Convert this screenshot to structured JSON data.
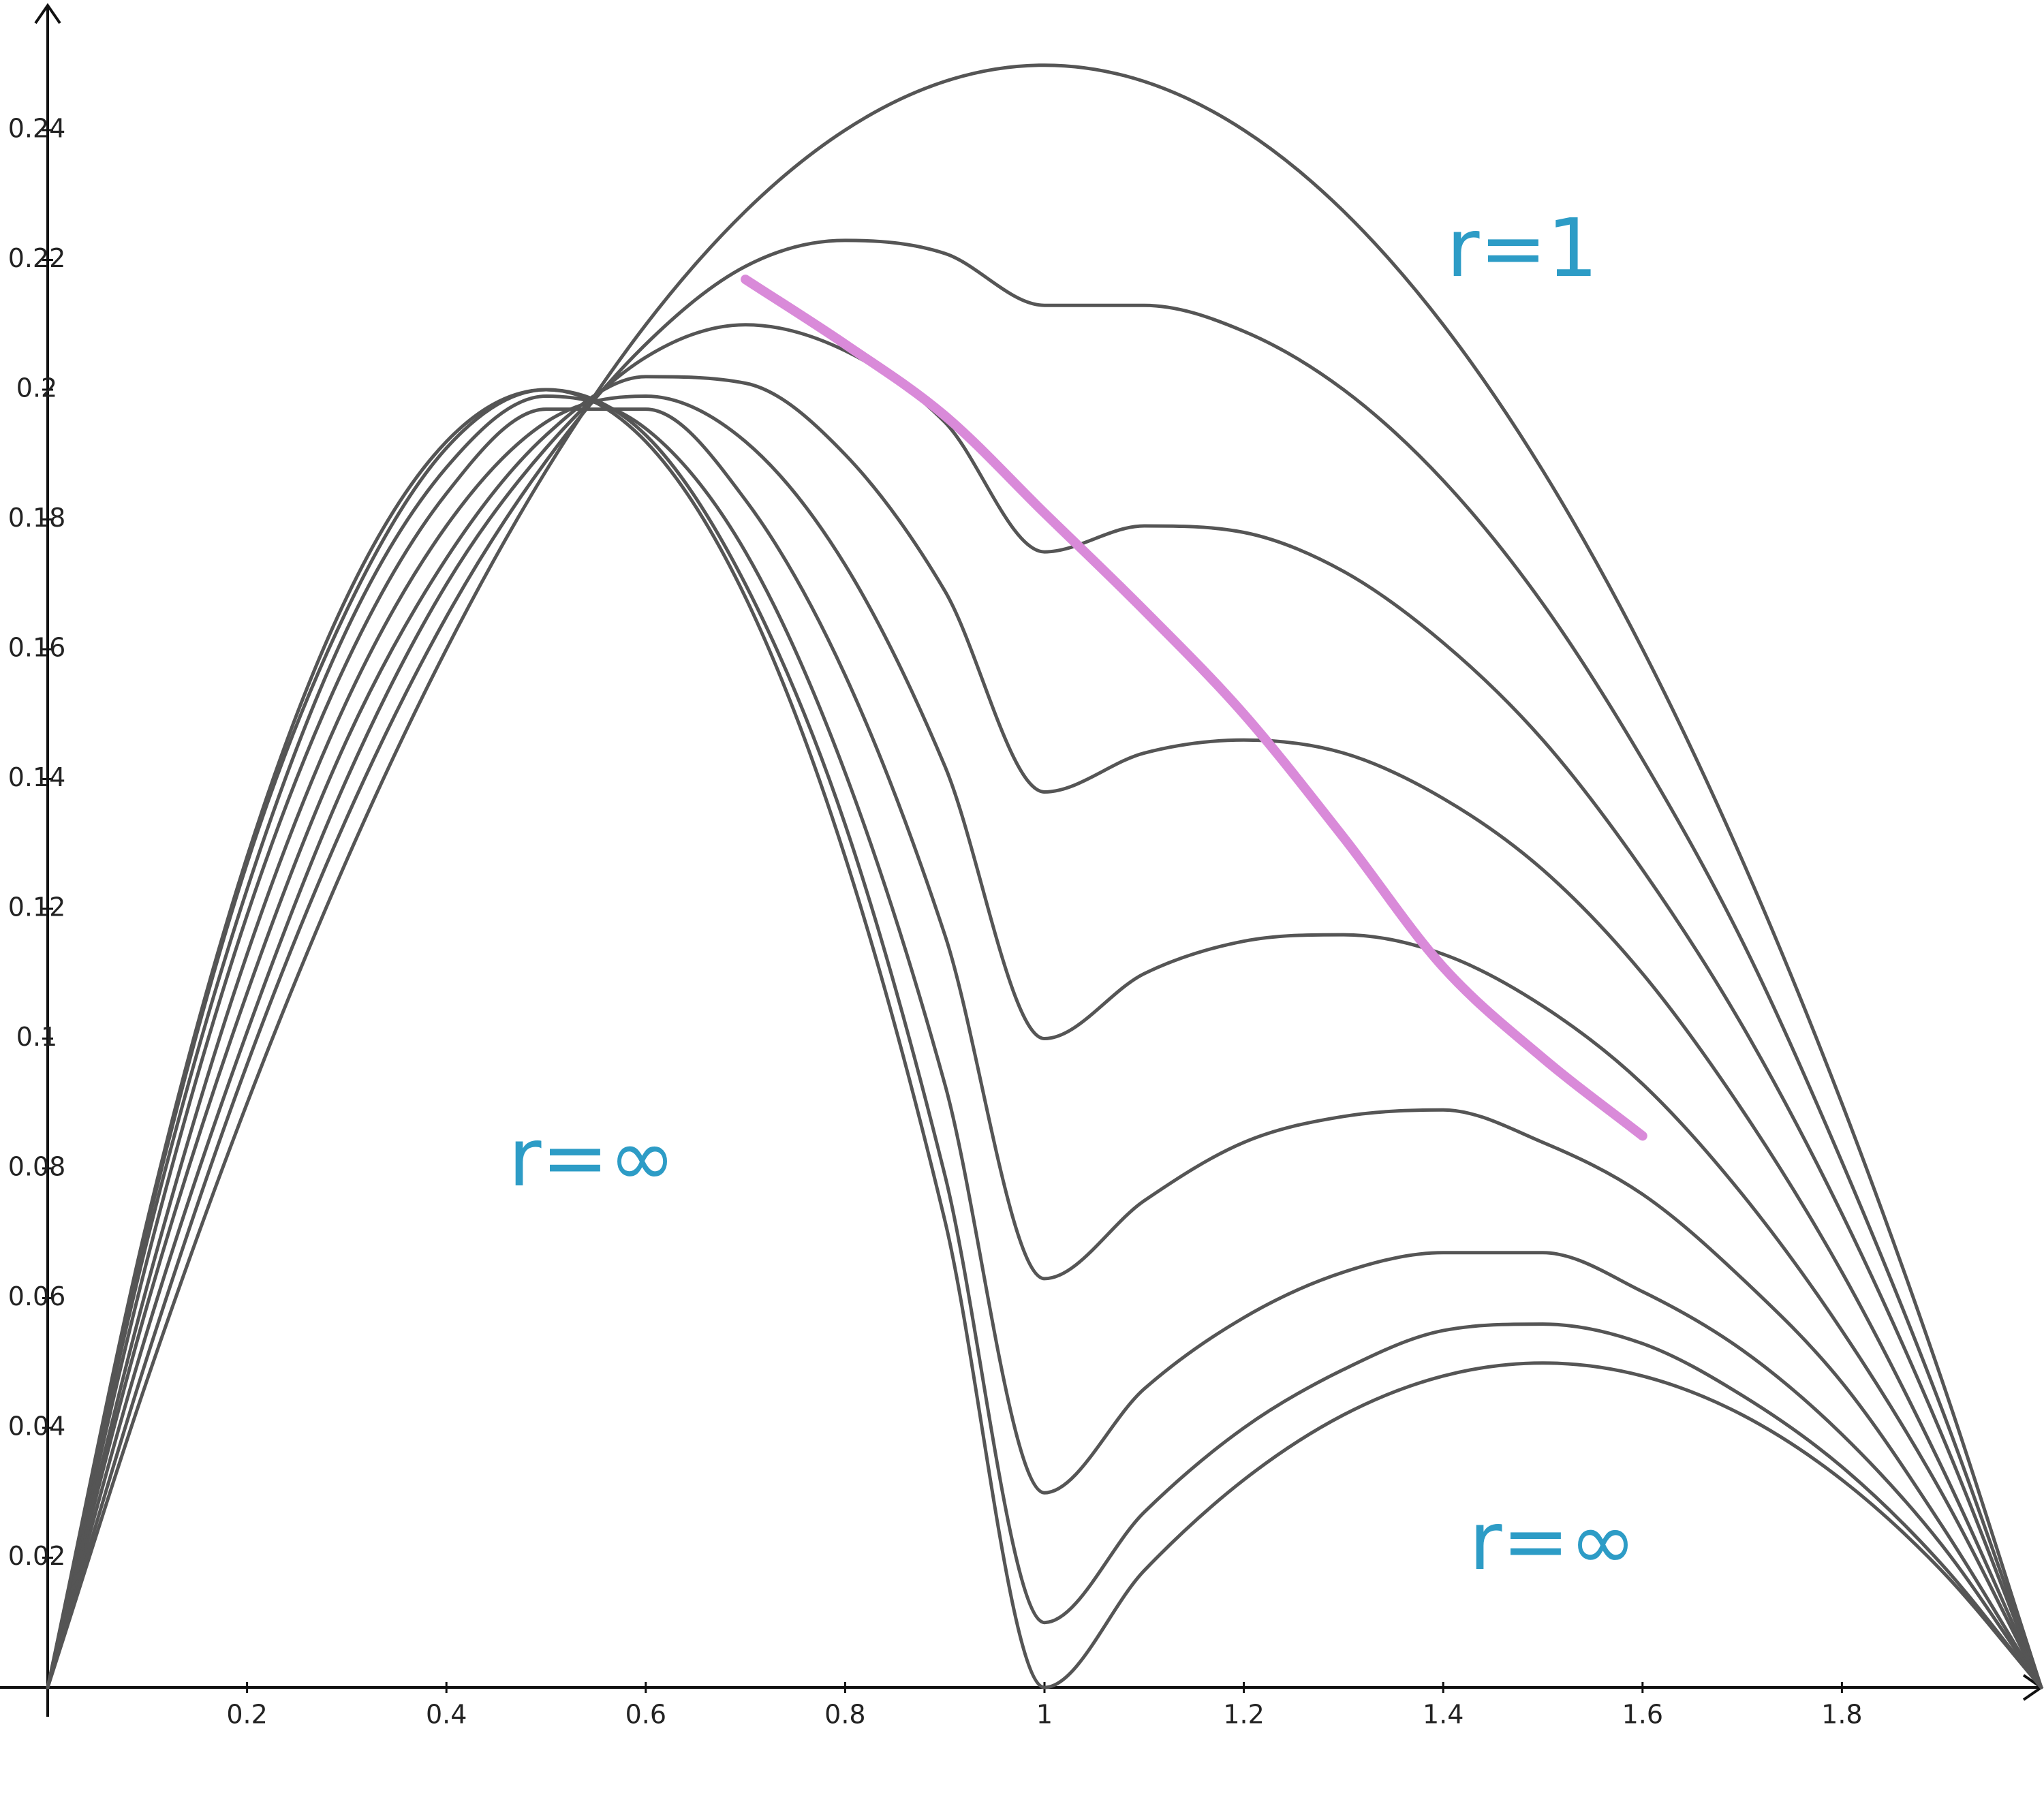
{
  "chart_data": {
    "type": "line",
    "color": "#555555",
    "x": [
      0,
      0.1,
      0.2,
      0.3,
      0.4,
      0.5,
      0.6,
      0.7,
      0.8,
      0.9,
      1,
      1.1,
      1.2,
      1.3,
      1.4,
      1.5,
      1.6,
      1.7,
      1.8,
      1.9,
      2
    ],
    "series": [
      {
        "values": [
          0,
          0.0475,
          0.09,
          0.1275,
          0.16,
          0.1875,
          0.21,
          0.2275,
          0.24,
          0.2475,
          0.25,
          0.2475,
          0.24,
          0.2275,
          0.21,
          0.1875,
          0.16,
          0.1275,
          0.09,
          0.0475,
          0
        ]
      },
      {
        "values": [
          0,
          0.051,
          0.096,
          0.134,
          0.165,
          0.189,
          0.207,
          0.219,
          0.223,
          0.221,
          0.213,
          0.213,
          0.209,
          0.2,
          0.186,
          0.167,
          0.143,
          0.115,
          0.081,
          0.043,
          0
        ]
      },
      {
        "values": [
          0,
          0.055,
          0.101,
          0.14,
          0.17,
          0.191,
          0.205,
          0.21,
          0.206,
          0.195,
          0.175,
          0.179,
          0.178,
          0.172,
          0.161,
          0.146,
          0.126,
          0.102,
          0.073,
          0.039,
          0
        ]
      },
      {
        "values": [
          0,
          0.059,
          0.107,
          0.146,
          0.174,
          0.193,
          0.202,
          0.201,
          0.19,
          0.169,
          0.138,
          0.144,
          0.146,
          0.144,
          0.137,
          0.126,
          0.11,
          0.089,
          0.064,
          0.034,
          0
        ]
      },
      {
        "values": [
          0,
          0.062,
          0.113,
          0.152,
          0.179,
          0.195,
          0.199,
          0.192,
          0.173,
          0.142,
          0.1,
          0.11,
          0.115,
          0.116,
          0.113,
          0.105,
          0.093,
          0.076,
          0.055,
          0.03,
          0
        ]
      },
      {
        "values": [
          0,
          0.066,
          0.119,
          0.158,
          0.184,
          0.197,
          0.197,
          0.183,
          0.156,
          0.116,
          0.063,
          0.075,
          0.084,
          0.088,
          0.089,
          0.084,
          0.076,
          0.063,
          0.047,
          0.025,
          0
        ]
      },
      {
        "values": [
          0,
          0.069,
          0.123,
          0.163,
          0.188,
          0.199,
          0.194,
          0.175,
          0.141,
          0.093,
          0.03,
          0.046,
          0.057,
          0.064,
          0.067,
          0.067,
          0.061,
          0.052,
          0.039,
          0.022,
          0
        ]
      },
      {
        "values": [
          0,
          0.071,
          0.127,
          0.166,
          0.191,
          0.2,
          0.193,
          0.17,
          0.133,
          0.079,
          0.01,
          0.027,
          0.04,
          0.049,
          0.055,
          0.056,
          0.053,
          0.045,
          0.034,
          0.019,
          0
        ]
      },
      {
        "values": [
          0,
          0.072,
          0.128,
          0.168,
          0.192,
          0.2,
          0.192,
          0.168,
          0.128,
          0.072,
          0,
          0.018,
          0.032,
          0.042,
          0.048,
          0.05,
          0.048,
          0.042,
          0.032,
          0.018,
          0
        ]
      },
      {
        "color": "#d98ad9",
        "values": [
          null,
          null,
          null,
          null,
          null,
          null,
          null,
          0.217,
          0.207,
          0.196,
          0.181,
          0.166,
          0.15,
          0.131,
          0.111,
          0.097,
          0.085,
          null,
          null,
          null,
          null
        ]
      }
    ],
    "xlim": [
      0,
      2
    ],
    "ylim": [
      0,
      0.259
    ],
    "xticks": [
      0.2,
      0.4,
      0.6,
      0.8,
      1,
      1.2,
      1.4,
      1.6,
      1.8
    ],
    "yticks": [
      0.02,
      0.04,
      0.06,
      0.08,
      0.1,
      0.12,
      0.14,
      0.16,
      0.18,
      0.2,
      0.22,
      0.24
    ],
    "annotations": [
      "r=1",
      "r=∞",
      "r=∞"
    ]
  }
}
